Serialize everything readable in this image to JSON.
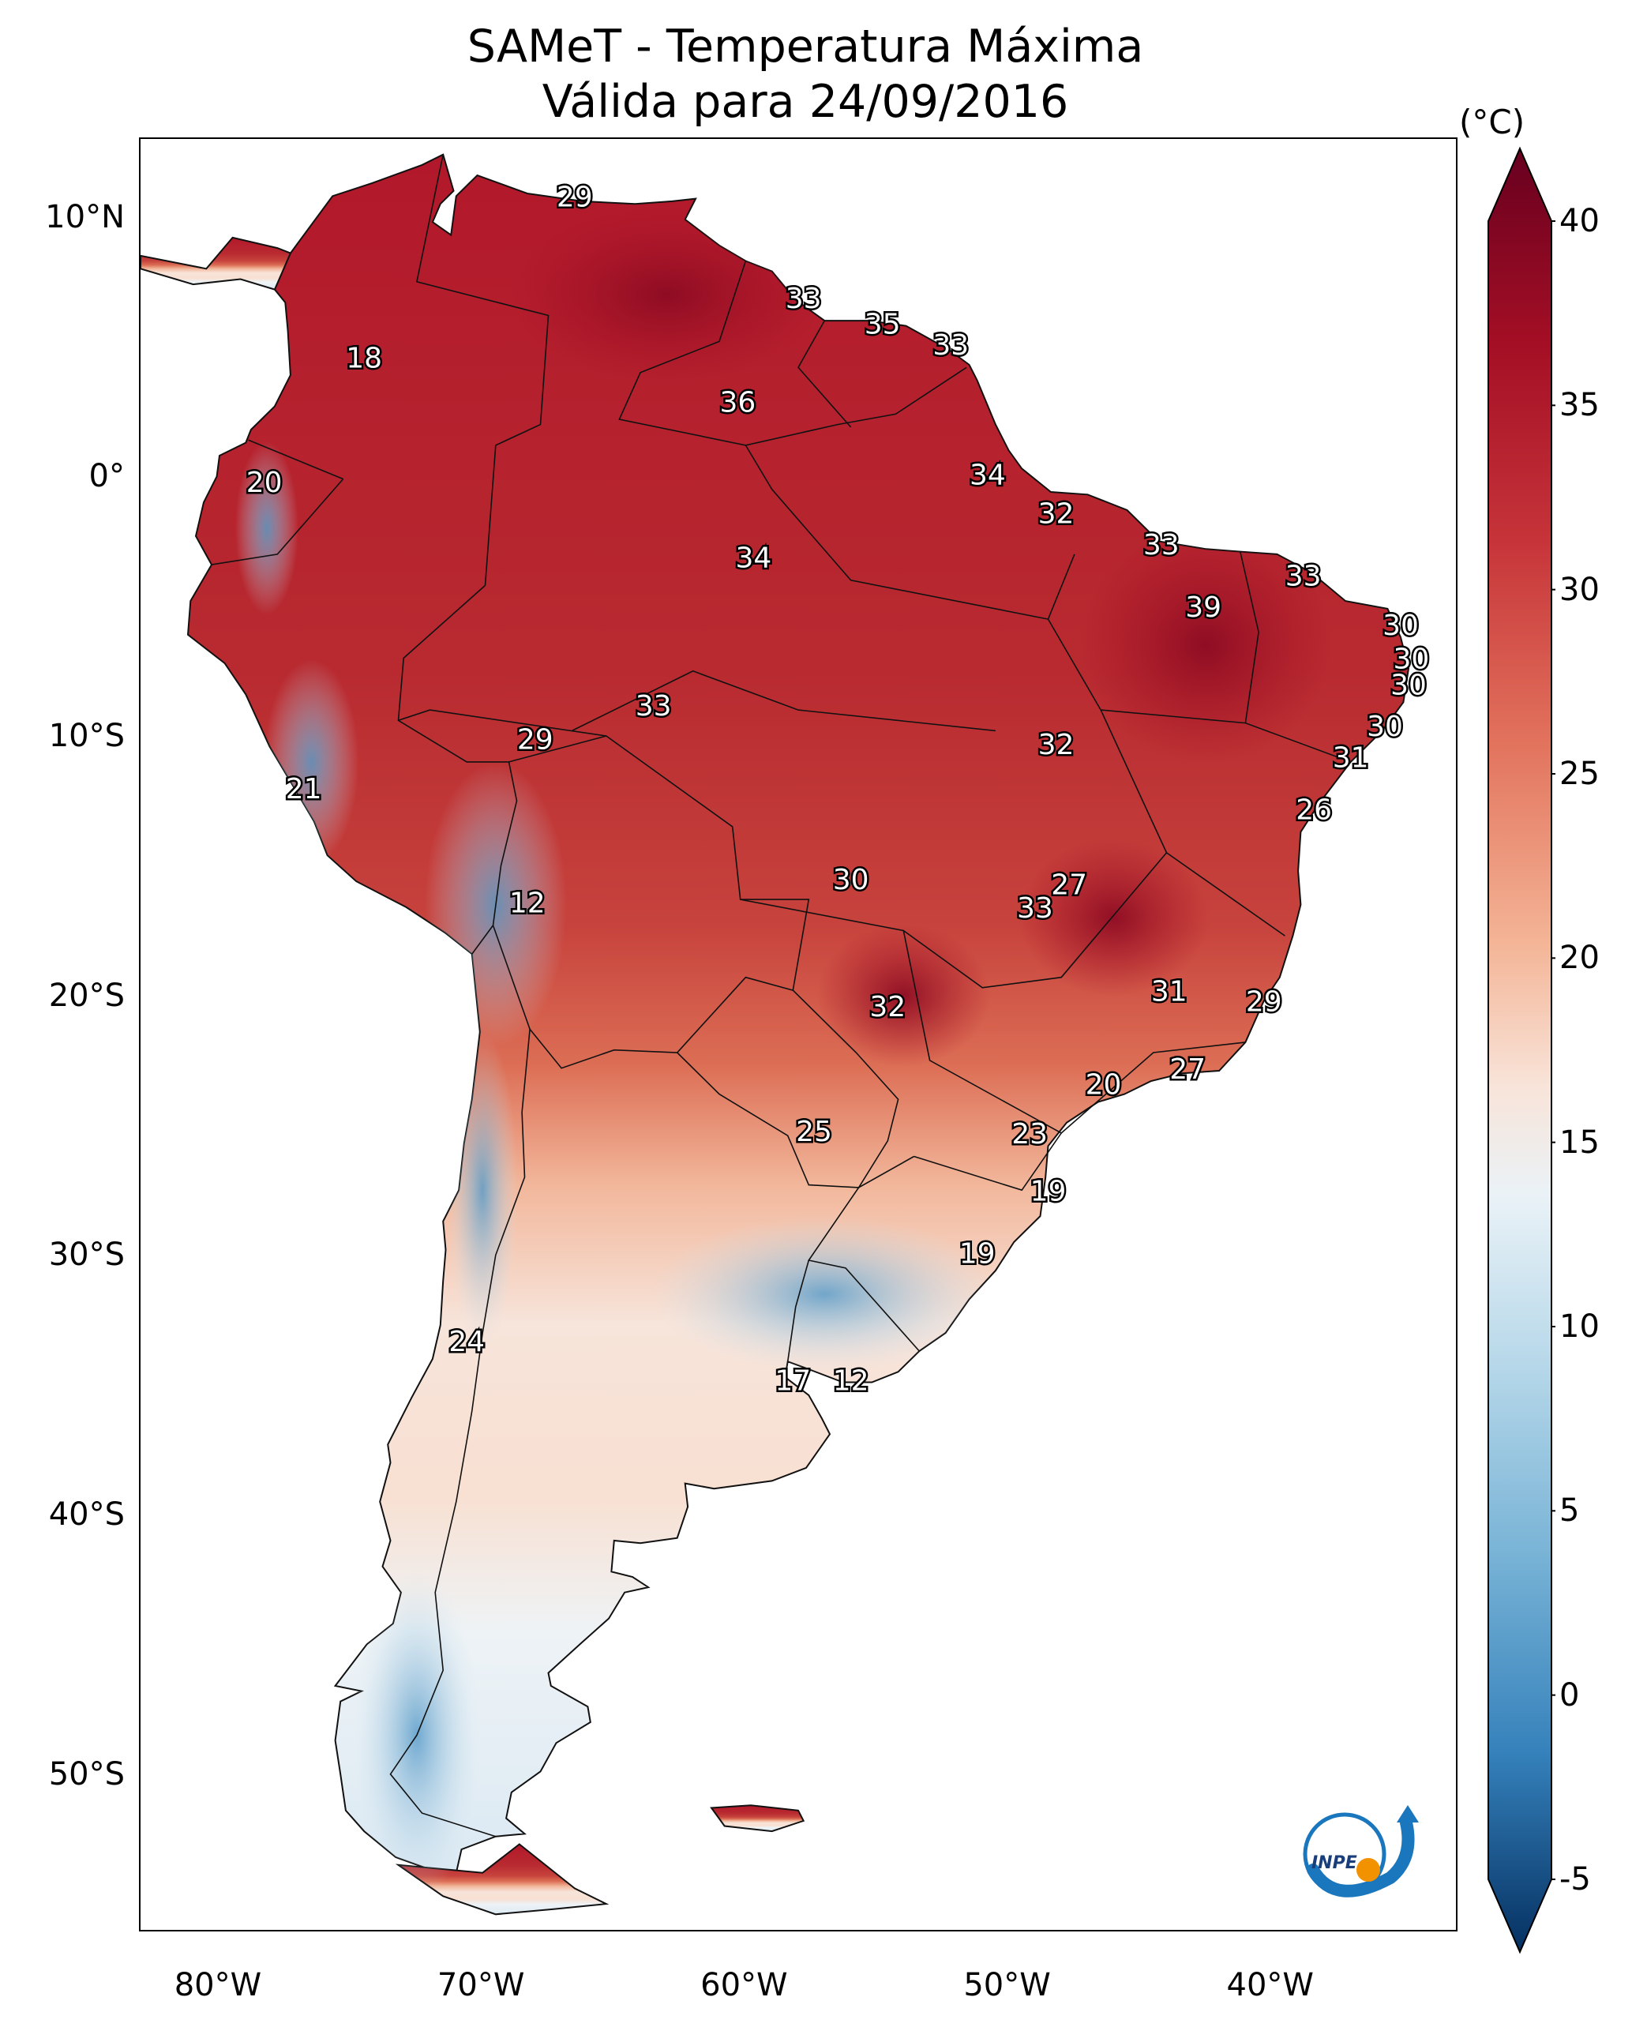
{
  "title": {
    "line1": "SAMeT - Temperatura Máxima",
    "line2": "Válida para 24/09/2016"
  },
  "colorbar": {
    "unit": "(°C)",
    "ticks": [
      "40",
      "35",
      "30",
      "25",
      "20",
      "15",
      "10",
      "5",
      "0",
      "-5"
    ],
    "range": [
      -5,
      40
    ],
    "colors": {
      "hot": "#67001f",
      "warm": "#c7353a",
      "mild": "#f4a582",
      "neutral": "#f7f7f7",
      "cool": "#92c5de",
      "cold": "#2166ac",
      "freezing": "#053061"
    }
  },
  "axes": {
    "lat_labels": [
      "10°N",
      "0°",
      "10°S",
      "20°S",
      "30°S",
      "40°S",
      "50°S"
    ],
    "lon_labels": [
      "80°W",
      "70°W",
      "60°W",
      "50°W",
      "40°W"
    ]
  },
  "station_labels": [
    {
      "value": "29",
      "lon": -66.5,
      "lat": 10.7
    },
    {
      "value": "18",
      "lon": -74.5,
      "lat": 4.5
    },
    {
      "value": "33",
      "lon": -57.8,
      "lat": 6.8
    },
    {
      "value": "35",
      "lon": -54.8,
      "lat": 5.8
    },
    {
      "value": "33",
      "lon": -52.2,
      "lat": 5.0
    },
    {
      "value": "36",
      "lon": -60.3,
      "lat": 2.8
    },
    {
      "value": "20",
      "lon": -78.3,
      "lat": -0.3
    },
    {
      "value": "34",
      "lon": -50.8,
      "lat": 0.0
    },
    {
      "value": "32",
      "lon": -48.2,
      "lat": -1.5
    },
    {
      "value": "34",
      "lon": -59.7,
      "lat": -3.2
    },
    {
      "value": "33",
      "lon": -44.2,
      "lat": -2.7
    },
    {
      "value": "33",
      "lon": -38.8,
      "lat": -3.9
    },
    {
      "value": "39",
      "lon": -42.6,
      "lat": -5.1
    },
    {
      "value": "30",
      "lon": -35.1,
      "lat": -5.8
    },
    {
      "value": "30",
      "lon": -34.7,
      "lat": -7.1
    },
    {
      "value": "30",
      "lon": -34.8,
      "lat": -8.1
    },
    {
      "value": "33",
      "lon": -63.5,
      "lat": -8.9
    },
    {
      "value": "29",
      "lon": -68.0,
      "lat": -10.2
    },
    {
      "value": "32",
      "lon": -48.2,
      "lat": -10.4
    },
    {
      "value": "30",
      "lon": -35.7,
      "lat": -9.7
    },
    {
      "value": "31",
      "lon": -37.0,
      "lat": -10.9
    },
    {
      "value": "21",
      "lon": -76.8,
      "lat": -12.1
    },
    {
      "value": "26",
      "lon": -38.4,
      "lat": -12.9
    },
    {
      "value": "12",
      "lon": -68.3,
      "lat": -16.5
    },
    {
      "value": "30",
      "lon": -56.0,
      "lat": -15.6
    },
    {
      "value": "27",
      "lon": -47.7,
      "lat": -15.8
    },
    {
      "value": "33",
      "lon": -49.0,
      "lat": -16.7
    },
    {
      "value": "31",
      "lon": -43.9,
      "lat": -19.9
    },
    {
      "value": "29",
      "lon": -40.3,
      "lat": -20.3
    },
    {
      "value": "32",
      "lon": -54.6,
      "lat": -20.5
    },
    {
      "value": "27",
      "lon": -43.2,
      "lat": -22.9
    },
    {
      "value": "20",
      "lon": -46.4,
      "lat": -23.5
    },
    {
      "value": "25",
      "lon": -57.4,
      "lat": -25.3
    },
    {
      "value": "23",
      "lon": -49.2,
      "lat": -25.4
    },
    {
      "value": "19",
      "lon": -48.5,
      "lat": -27.6
    },
    {
      "value": "19",
      "lon": -51.2,
      "lat": -30.0
    },
    {
      "value": "24",
      "lon": -70.6,
      "lat": -33.4
    },
    {
      "value": "17",
      "lon": -58.2,
      "lat": -34.9
    },
    {
      "value": "12",
      "lon": -56.0,
      "lat": -34.9
    }
  ],
  "logo": {
    "text": "INPE"
  }
}
